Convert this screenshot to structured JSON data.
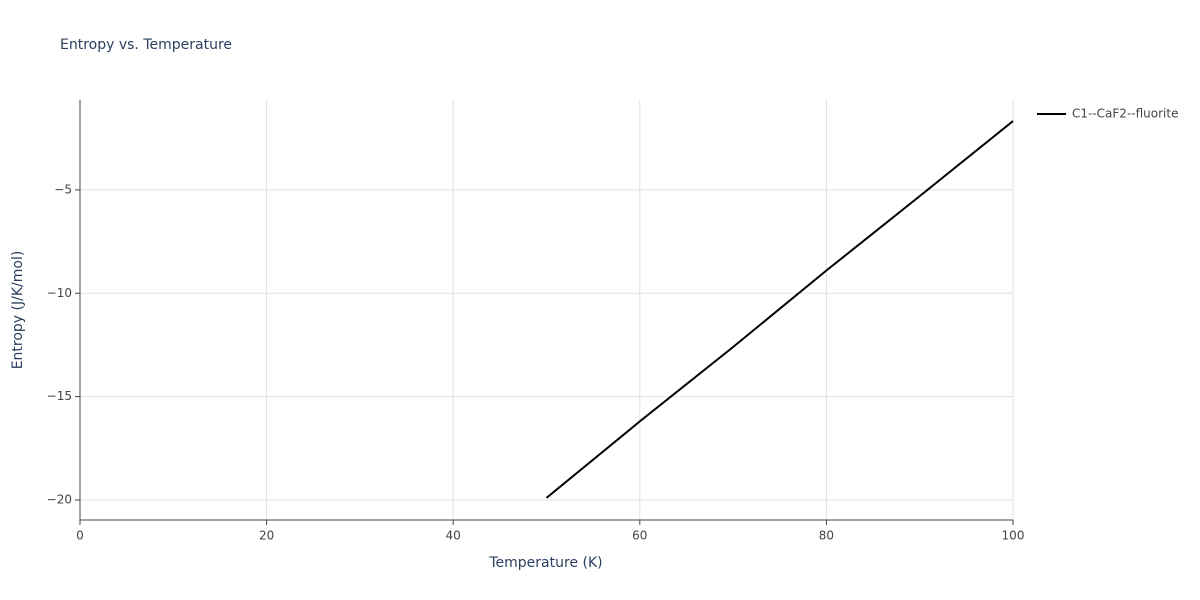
{
  "chart_data": {
    "type": "line",
    "title": "Entropy vs. Temperature",
    "x_label": "Temperature (K)",
    "y_label": "Entropy (J/K/mol)",
    "x": [
      50,
      60,
      70,
      80,
      90,
      100
    ],
    "series": [
      {
        "name": "C1--CaF2--fluorite",
        "color": "#000000",
        "values": [
          -19.9,
          -16.2,
          -12.6,
          -8.9,
          -5.3,
          -1.67
        ]
      }
    ],
    "xlim": [
      0,
      100
    ],
    "xticks": [
      0,
      20,
      40,
      60,
      80,
      100
    ],
    "ylim": [
      -20.97,
      -0.65
    ],
    "yticks": [
      {
        "value": -20,
        "label": "−20"
      },
      {
        "value": -15,
        "label": "−15"
      },
      {
        "value": -10,
        "label": "−10"
      },
      {
        "value": -5,
        "label": "−5"
      }
    ],
    "grid": true,
    "legend": "right"
  }
}
